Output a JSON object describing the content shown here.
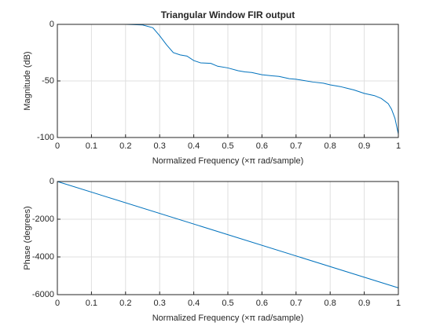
{
  "chart_data": [
    {
      "type": "line",
      "title": "Triangular Window FIR output",
      "xlabel": "Normalized Frequency  (×π rad/sample)",
      "ylabel": "Magnitude (dB)",
      "x": [
        0,
        0.1,
        0.2,
        0.25,
        0.28,
        0.3,
        0.32,
        0.34,
        0.36,
        0.38,
        0.4,
        0.42,
        0.45,
        0.47,
        0.5,
        0.53,
        0.55,
        0.57,
        0.6,
        0.63,
        0.65,
        0.68,
        0.7,
        0.73,
        0.75,
        0.78,
        0.8,
        0.83,
        0.85,
        0.87,
        0.9,
        0.93,
        0.95,
        0.97,
        0.98,
        0.99,
        1
      ],
      "series": [
        {
          "name": "Magnitude",
          "color": "#0072bd",
          "values": [
            0,
            0,
            0,
            -0.5,
            -3,
            -10,
            -18,
            -25,
            -27,
            -28,
            -32,
            -34,
            -34.5,
            -37,
            -38.5,
            -41,
            -42,
            -42.5,
            -44.5,
            -45.5,
            -46,
            -48,
            -48.5,
            -50,
            -51,
            -52,
            -53.5,
            -55,
            -56.5,
            -58,
            -61,
            -63,
            -65.5,
            -70,
            -75,
            -83,
            -97
          ]
        }
      ],
      "xlim": [
        0,
        1
      ],
      "xticks": [
        0,
        0.1,
        0.2,
        0.3,
        0.4,
        0.5,
        0.6,
        0.7,
        0.8,
        0.9,
        1
      ],
      "ylim": [
        -100,
        0
      ],
      "yticks": [
        -100,
        -50,
        0
      ],
      "grid": true
    },
    {
      "type": "line",
      "xlabel": "Normalized Frequency  (×π rad/sample)",
      "ylabel": "Phase (degrees)",
      "x": [
        0,
        1
      ],
      "series": [
        {
          "name": "Phase",
          "color": "#0072bd",
          "values": [
            0,
            -5640
          ]
        }
      ],
      "xlim": [
        0,
        1
      ],
      "xticks": [
        0,
        0.1,
        0.2,
        0.3,
        0.4,
        0.5,
        0.6,
        0.7,
        0.8,
        0.9,
        1
      ],
      "ylim": [
        -6000,
        0
      ],
      "yticks": [
        -6000,
        -4000,
        -2000,
        0
      ],
      "grid": true
    }
  ]
}
